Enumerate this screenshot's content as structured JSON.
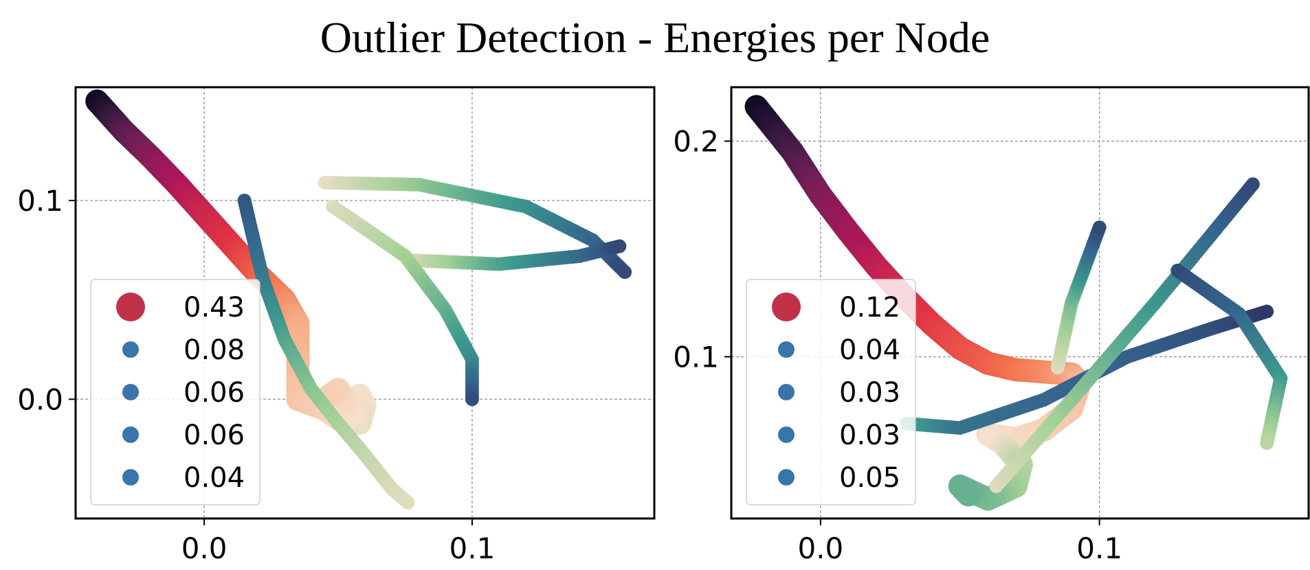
{
  "figure": {
    "title": "Outlier Detection - Energies per Node"
  },
  "chart_data": [
    {
      "type": "scatter",
      "title": "",
      "xlabel": "",
      "ylabel": "",
      "xlim": [
        -0.048,
        0.168
      ],
      "ylim": [
        -0.06,
        0.157
      ],
      "xticks": [
        0.0,
        0.1
      ],
      "yticks": [
        0.0,
        0.1
      ],
      "xtick_labels": [
        "0.0",
        "0.1"
      ],
      "ytick_labels": [
        "0.0",
        "0.1"
      ],
      "grid": true,
      "legend_position": "lower-left",
      "colormap": [
        "#03051a",
        "#35193e",
        "#701f57",
        "#ad1759",
        "#e13342",
        "#f37651",
        "#f6b48f",
        "#f6e0cd",
        "#a0cf94",
        "#3d9a8e",
        "#34618d",
        "#2e2d5c"
      ],
      "legend": [
        {
          "label": "0.43",
          "color": "#c0314a"
        },
        {
          "label": "0.08",
          "color": "#3b73ad"
        },
        {
          "label": "0.06",
          "color": "#3b73ad"
        },
        {
          "label": "0.06",
          "color": "#3b73ad"
        },
        {
          "label": "0.04",
          "color": "#3b73ad"
        }
      ],
      "series": [
        {
          "points": [
            [
              -0.04,
              0.15,
              0.02
            ],
            [
              -0.03,
              0.135,
              0.14
            ],
            [
              -0.02,
              0.122,
              0.21
            ],
            [
              -0.01,
              0.108,
              0.27
            ],
            [
              0.0,
              0.093,
              0.32
            ],
            [
              0.01,
              0.078,
              0.36
            ],
            [
              0.02,
              0.063,
              0.42
            ],
            [
              0.03,
              0.05,
              0.48
            ],
            [
              0.035,
              0.038,
              0.53
            ],
            [
              0.035,
              0.022,
              0.55
            ],
            [
              0.035,
              0.008,
              0.57
            ],
            [
              0.035,
              0.0,
              0.58
            ],
            [
              0.045,
              -0.005,
              0.6
            ],
            [
              0.05,
              -0.01,
              0.62
            ],
            [
              0.055,
              -0.005,
              0.63
            ],
            [
              0.058,
              0.002,
              0.64
            ],
            [
              0.06,
              -0.003,
              0.64
            ],
            [
              0.058,
              -0.012,
              0.65
            ],
            [
              0.05,
              0.005,
              0.61
            ],
            [
              0.045,
              0.0,
              0.6
            ]
          ],
          "r_start": 17,
          "r_end": 17
        },
        {
          "points": [
            [
              0.015,
              0.1,
              0.93
            ],
            [
              0.022,
              0.06,
              0.87
            ],
            [
              0.03,
              0.03,
              0.8
            ],
            [
              0.04,
              0.005,
              0.75
            ],
            [
              0.05,
              -0.012,
              0.72
            ],
            [
              0.06,
              -0.028,
              0.69
            ],
            [
              0.07,
              -0.045,
              0.67
            ],
            [
              0.076,
              -0.052,
              0.66
            ]
          ],
          "r_start": 10,
          "r_end": 10
        },
        {
          "points": [
            [
              0.045,
              0.109,
              0.65
            ],
            [
              0.08,
              0.108,
              0.74
            ],
            [
              0.12,
              0.097,
              0.83
            ],
            [
              0.145,
              0.08,
              0.9
            ],
            [
              0.157,
              0.064,
              0.95
            ]
          ],
          "r_start": 10,
          "r_end": 10
        },
        {
          "points": [
            [
              0.076,
              0.07,
              0.66
            ],
            [
              0.11,
              0.068,
              0.8
            ],
            [
              0.14,
              0.072,
              0.89
            ],
            [
              0.155,
              0.077,
              0.95
            ]
          ],
          "r_start": 10,
          "r_end": 10
        },
        {
          "points": [
            [
              0.048,
              0.097,
              0.66
            ],
            [
              0.075,
              0.072,
              0.72
            ],
            [
              0.09,
              0.045,
              0.78
            ],
            [
              0.1,
              0.02,
              0.84
            ],
            [
              0.1,
              0.0,
              0.94
            ]
          ],
          "r_start": 10,
          "r_end": 10
        }
      ]
    },
    {
      "type": "scatter",
      "title": "",
      "xlabel": "",
      "ylabel": "",
      "xlim": [
        -0.032,
        0.175
      ],
      "ylim": [
        0.025,
        0.225
      ],
      "xticks": [
        0.0,
        0.1
      ],
      "yticks": [
        0.1,
        0.2
      ],
      "xtick_labels": [
        "0.0",
        "0.1"
      ],
      "ytick_labels": [
        "0.1",
        "0.2"
      ],
      "grid": true,
      "legend_position": "lower-left",
      "colormap": [
        "#03051a",
        "#35193e",
        "#701f57",
        "#ad1759",
        "#e13342",
        "#f37651",
        "#f6b48f",
        "#f6e0cd",
        "#a0cf94",
        "#3d9a8e",
        "#34618d",
        "#2e2d5c"
      ],
      "legend": [
        {
          "label": "0.12",
          "color": "#c0314a"
        },
        {
          "label": "0.04",
          "color": "#3b73ad"
        },
        {
          "label": "0.03",
          "color": "#3b73ad"
        },
        {
          "label": "0.03",
          "color": "#3b73ad"
        },
        {
          "label": "0.05",
          "color": "#3b73ad"
        }
      ],
      "series": [
        {
          "points": [
            [
              -0.023,
              0.216,
              0.02
            ],
            [
              -0.01,
              0.195,
              0.12
            ],
            [
              0.0,
              0.175,
              0.2
            ],
            [
              0.01,
              0.158,
              0.25
            ],
            [
              0.02,
              0.142,
              0.3
            ],
            [
              0.03,
              0.128,
              0.34
            ],
            [
              0.04,
              0.115,
              0.37
            ],
            [
              0.05,
              0.104,
              0.4
            ],
            [
              0.06,
              0.097,
              0.42
            ],
            [
              0.07,
              0.094,
              0.45
            ],
            [
              0.08,
              0.093,
              0.48
            ],
            [
              0.09,
              0.092,
              0.52
            ],
            [
              0.093,
              0.088,
              0.55
            ],
            [
              0.09,
              0.076,
              0.58
            ],
            [
              0.08,
              0.066,
              0.6
            ],
            [
              0.07,
              0.062,
              0.62
            ],
            [
              0.06,
              0.064,
              0.63
            ],
            [
              0.065,
              0.06,
              0.64
            ],
            [
              0.072,
              0.05,
              0.7
            ],
            [
              0.07,
              0.04,
              0.72
            ],
            [
              0.06,
              0.034,
              0.76
            ],
            [
              0.05,
              0.04,
              0.78
            ],
            [
              0.053,
              0.036,
              0.78
            ]
          ],
          "r_start": 17,
          "r_end": 17
        },
        {
          "points": [
            [
              0.031,
              0.069,
              0.8
            ],
            [
              0.05,
              0.067,
              0.88
            ],
            [
              0.08,
              0.08,
              0.9
            ],
            [
              0.11,
              0.1,
              0.91
            ],
            [
              0.14,
              0.113,
              0.94
            ],
            [
              0.16,
              0.121,
              0.98
            ]
          ],
          "r_start": 10,
          "r_end": 10
        },
        {
          "points": [
            [
              0.063,
              0.04,
              0.66
            ],
            [
              0.09,
              0.08,
              0.74
            ],
            [
              0.12,
              0.125,
              0.82
            ],
            [
              0.155,
              0.18,
              0.95
            ]
          ],
          "r_start": 10,
          "r_end": 10
        },
        {
          "points": [
            [
              0.085,
              0.095,
              0.66
            ],
            [
              0.09,
              0.125,
              0.76
            ],
            [
              0.1,
              0.16,
              0.95
            ]
          ],
          "r_start": 10,
          "r_end": 10
        },
        {
          "points": [
            [
              0.128,
              0.14,
              0.95
            ],
            [
              0.15,
              0.12,
              0.9
            ],
            [
              0.165,
              0.09,
              0.82
            ],
            [
              0.16,
              0.06,
              0.7
            ]
          ],
          "r_start": 10,
          "r_end": 10
        }
      ]
    }
  ]
}
